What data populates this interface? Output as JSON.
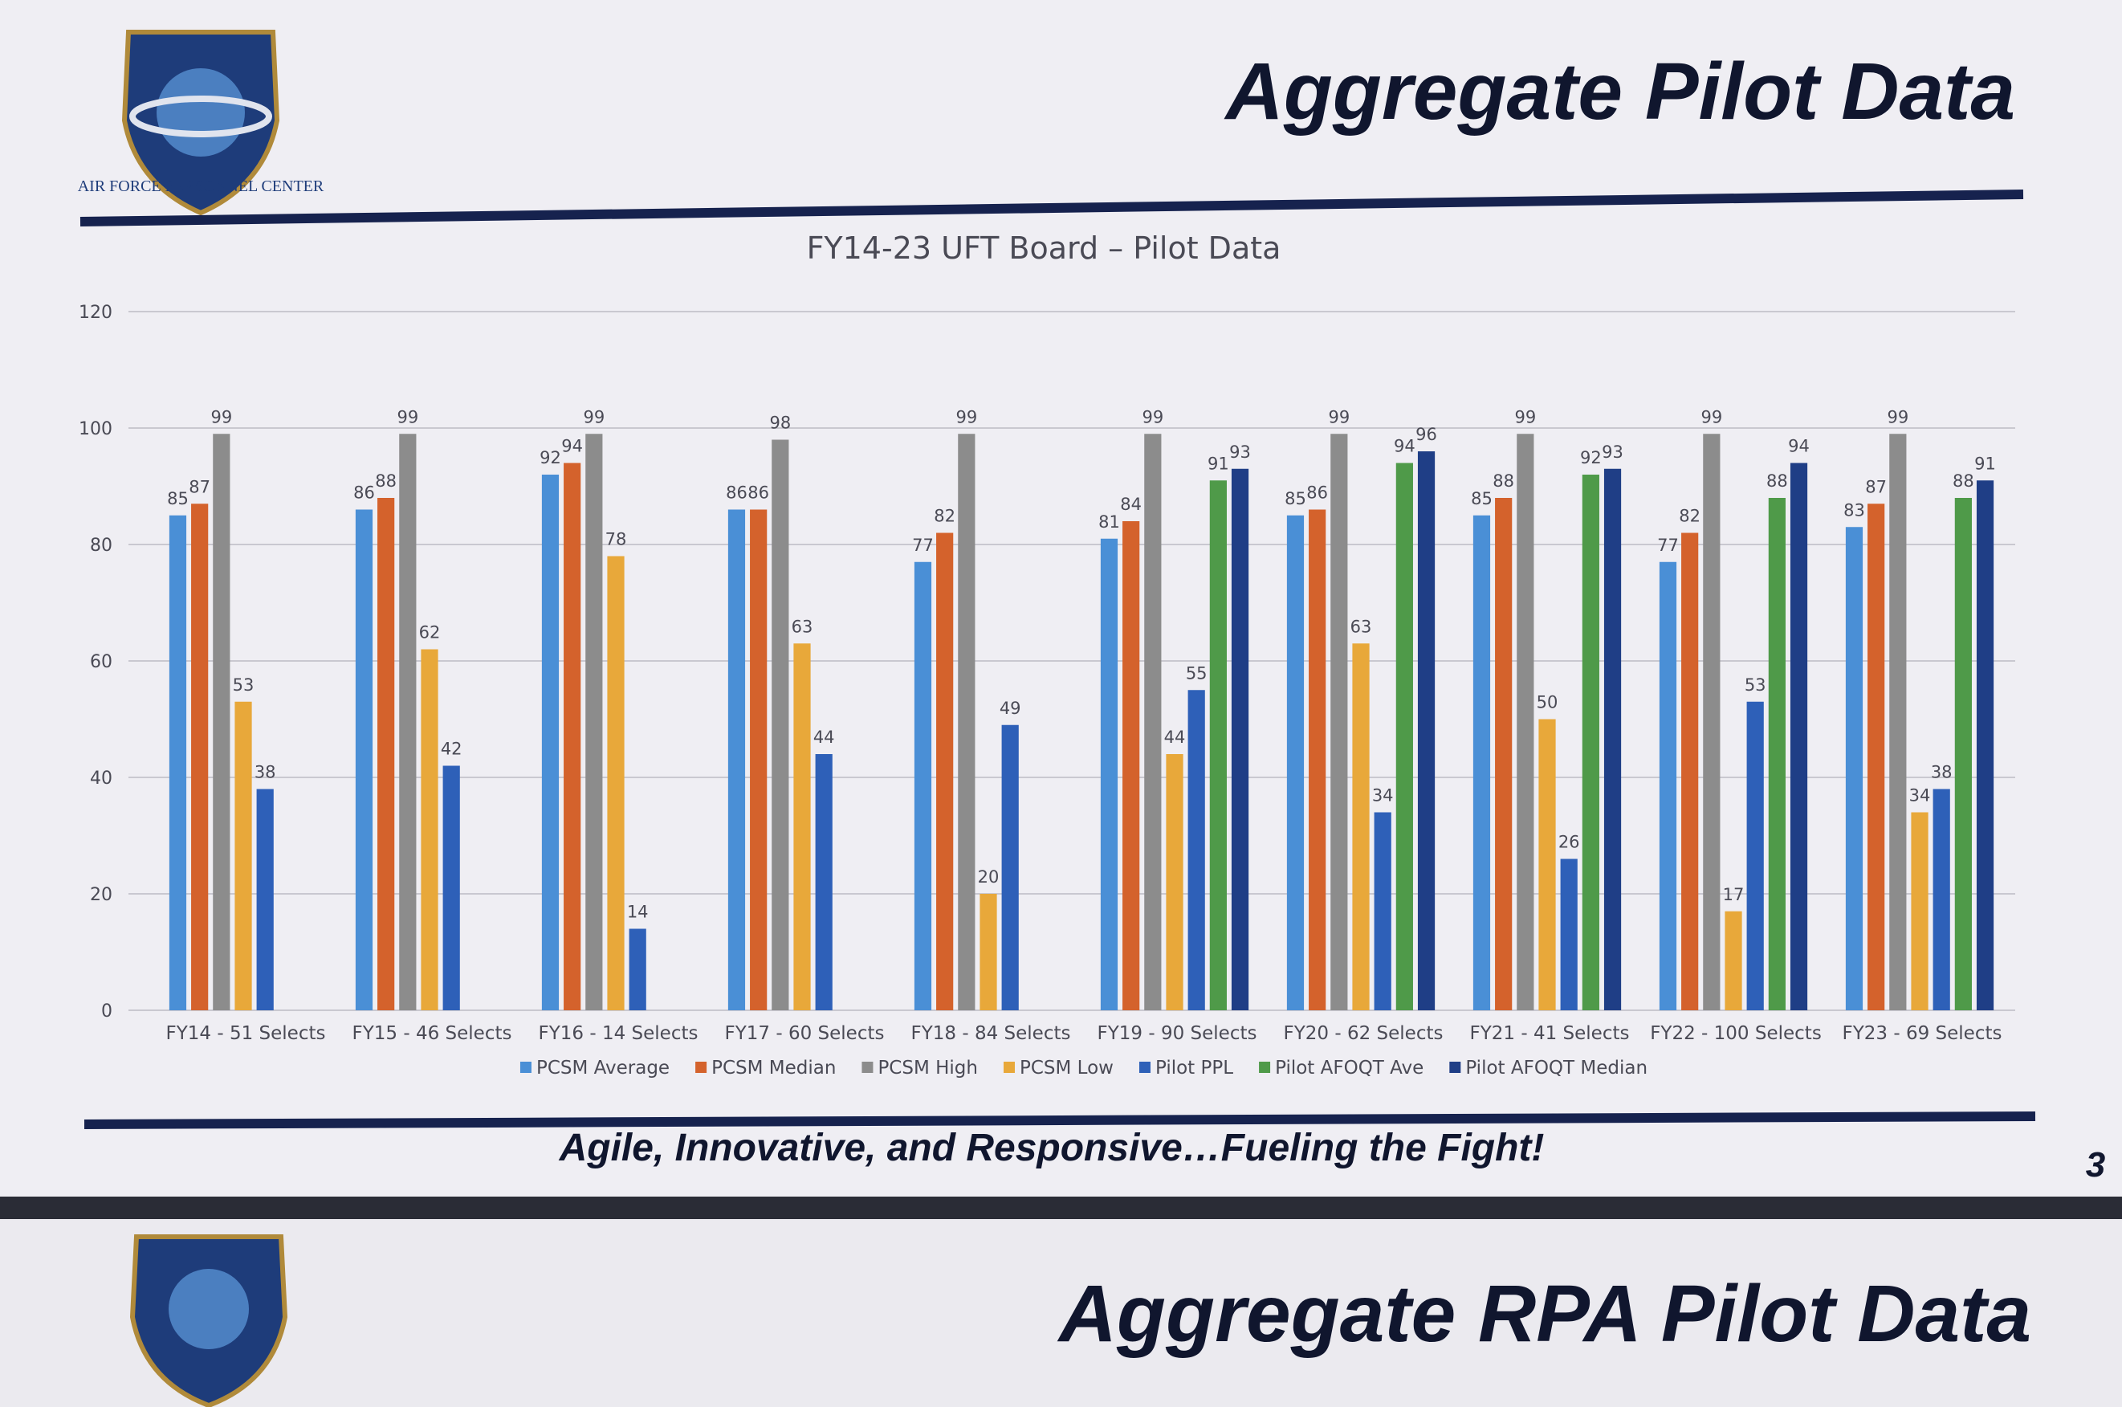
{
  "slide": {
    "title": "Aggregate Pilot Data",
    "logo_text": "AIR FORCE PERSONNEL CENTER",
    "footer": "Agile, Innovative, and Responsive…Fueling the Fight!",
    "page_number": "3",
    "next_slide_title": "Aggregate RPA Pilot Data"
  },
  "chart_data": {
    "type": "bar",
    "title": "FY14-23 UFT Board – Pilot Data",
    "categories": [
      "FY14 - 51 Selects",
      "FY15 - 46 Selects",
      "FY16 - 14 Selects",
      "FY17 - 60 Selects",
      "FY18 - 84 Selects",
      "FY19 - 90 Selects",
      "FY20 - 62 Selects",
      "FY21 - 41 Selects",
      "FY22 - 100 Selects",
      "FY23 - 69 Selects"
    ],
    "series": [
      {
        "name": "PCSM Average",
        "color": "#4a8fd6",
        "values": [
          85,
          86,
          92,
          86,
          77,
          81,
          85,
          85,
          77,
          83
        ]
      },
      {
        "name": "PCSM Median",
        "color": "#d4622c",
        "values": [
          87,
          88,
          94,
          86,
          82,
          84,
          86,
          88,
          82,
          87
        ]
      },
      {
        "name": "PCSM High",
        "color": "#8c8c8c",
        "values": [
          99,
          99,
          99,
          98,
          99,
          99,
          99,
          99,
          99,
          99
        ]
      },
      {
        "name": "PCSM Low",
        "color": "#e8a83a",
        "values": [
          53,
          62,
          78,
          63,
          20,
          44,
          63,
          50,
          17,
          34
        ]
      },
      {
        "name": "Pilot PPL",
        "color": "#2e60b8",
        "values": [
          38,
          42,
          14,
          44,
          49,
          55,
          34,
          26,
          53,
          38
        ]
      },
      {
        "name": "Pilot AFOQT Ave",
        "color": "#4f9a49",
        "values": [
          null,
          null,
          null,
          null,
          null,
          91,
          94,
          92,
          88,
          88
        ]
      },
      {
        "name": "Pilot AFOQT Median",
        "color": "#1f3e86",
        "values": [
          null,
          null,
          null,
          null,
          null,
          93,
          96,
          93,
          94,
          91
        ]
      }
    ],
    "ylim": [
      0,
      120
    ],
    "yticks": [
      0,
      20,
      40,
      60,
      80,
      100,
      120
    ],
    "grid": true,
    "legend": "bottom"
  }
}
